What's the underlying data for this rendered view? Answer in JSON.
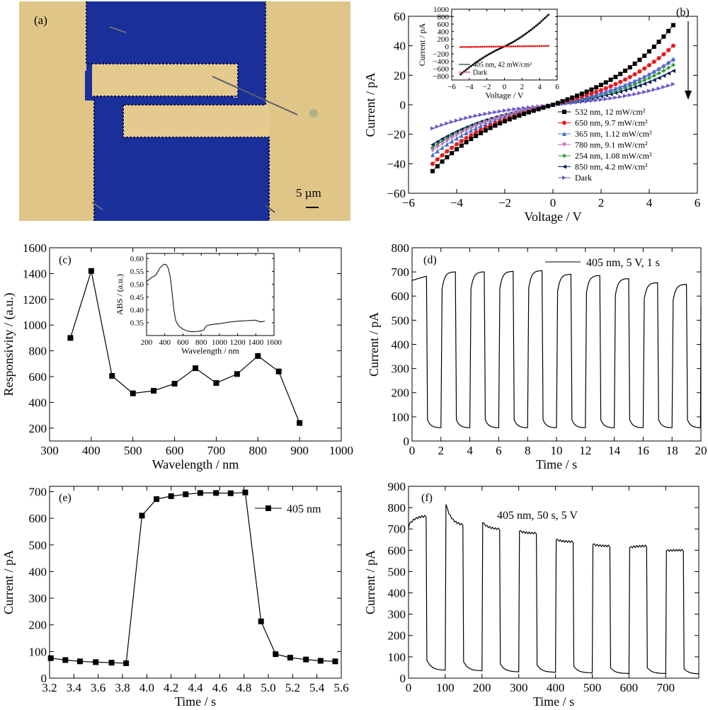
{
  "panel_a": {
    "label": "(a)",
    "scalebar_label": "5 µm",
    "colors": {
      "background": "#e4ca8e",
      "electrode": "#1a2f99",
      "electrode_edge": "#0a155a"
    }
  },
  "chart_data": [
    {
      "id": "b",
      "type": "line",
      "label": "(b)",
      "xlabel": "Voltage / V",
      "ylabel": "Current / pA",
      "xlim": [
        -6,
        6
      ],
      "ylim": [
        -60,
        60
      ],
      "xticks": [
        -6,
        -4,
        -2,
        0,
        2,
        4,
        6
      ],
      "yticks": [
        -60,
        -40,
        -20,
        0,
        20,
        40,
        60
      ],
      "x_range": [
        -5,
        5
      ],
      "series": [
        {
          "name": "532 nm, 12 mW/cm²",
          "color": "#000000",
          "marker": "square",
          "endpoints": [
            -45,
            54
          ]
        },
        {
          "name": "650 nm, 9.7 mW/cm²",
          "color": "#e31a1c",
          "marker": "circle",
          "endpoints": [
            -40,
            40
          ]
        },
        {
          "name": "365 nm, 1.12 mW/cm²",
          "color": "#3a6fd0",
          "marker": "triangle-up",
          "endpoints": [
            -34,
            31
          ]
        },
        {
          "name": "780 nm, 9.1 mW/cm²",
          "color": "#c86fc8",
          "marker": "triangle-down",
          "endpoints": [
            -31,
            30
          ]
        },
        {
          "name": "254 nm, 1.08 mW/cm²",
          "color": "#2f9e2f",
          "marker": "diamond",
          "endpoints": [
            -29,
            27
          ]
        },
        {
          "name": "850 nm, 4.2 mW/cm²",
          "color": "#0b1a5c",
          "marker": "triangle-left",
          "endpoints": [
            -27,
            23
          ]
        },
        {
          "name": "Dark",
          "color": "#6b56c8",
          "marker": "triangle-right",
          "endpoints": [
            -16,
            14
          ]
        }
      ],
      "inset": {
        "xlabel": "Voltage / V",
        "ylabel": "Current / pA",
        "xlim": [
          -6,
          6
        ],
        "ylim": [
          -900,
          1000
        ],
        "xticks": [
          -6,
          -4,
          -2,
          0,
          2,
          4,
          6
        ],
        "yticks": [
          -800,
          -600,
          -400,
          -200,
          0,
          200,
          400,
          600,
          800,
          1000
        ],
        "series": [
          {
            "name": "405 nm, 42 mW/cm²",
            "color": "#000000",
            "x": [
              -5,
              -4,
              -3,
              -2,
              -1,
              0,
              1,
              2,
              3,
              4,
              5
            ],
            "y": [
              -750,
              -560,
              -390,
              -240,
              -110,
              0,
              120,
              270,
              440,
              630,
              850
            ]
          },
          {
            "name": "Dark",
            "color": "#e31a1c",
            "x": [
              -5,
              5
            ],
            "y": [
              -16,
              14
            ]
          }
        ]
      }
    },
    {
      "id": "c",
      "type": "line",
      "label": "(c)",
      "xlabel": "Wavelength / nm",
      "ylabel": "Responsivity / (a.u.)",
      "xlim": [
        300,
        1000
      ],
      "ylim": [
        100,
        1600
      ],
      "xticks": [
        300,
        400,
        500,
        600,
        700,
        800,
        900,
        1000
      ],
      "yticks": [
        200,
        400,
        600,
        800,
        1000,
        1200,
        1400,
        1600
      ],
      "x": [
        350,
        400,
        450,
        500,
        550,
        600,
        650,
        700,
        750,
        800,
        850,
        900
      ],
      "values": [
        900,
        1420,
        605,
        470,
        490,
        545,
        665,
        550,
        620,
        760,
        640,
        240
      ],
      "inset": {
        "xlabel": "Wavelength / nm",
        "ylabel": "ABS / (a.u.)",
        "xlim": [
          200,
          1600
        ],
        "ylim": [
          0.3,
          0.62
        ],
        "xticks": [
          200,
          400,
          600,
          800,
          1000,
          1200,
          1400,
          1600
        ],
        "yticks": [
          0.35,
          0.4,
          0.45,
          0.5,
          0.55,
          0.6
        ],
        "x": [
          200,
          250,
          300,
          350,
          380,
          400,
          420,
          440,
          460,
          480,
          500,
          520,
          540,
          560,
          600,
          650,
          700,
          760,
          800,
          830,
          845,
          860,
          900,
          1000,
          1100,
          1200,
          1300,
          1400,
          1450,
          1500
        ],
        "y": [
          0.51,
          0.525,
          0.535,
          0.565,
          0.575,
          0.578,
          0.575,
          0.56,
          0.53,
          0.47,
          0.4,
          0.36,
          0.345,
          0.335,
          0.325,
          0.317,
          0.315,
          0.316,
          0.318,
          0.322,
          0.332,
          0.338,
          0.342,
          0.346,
          0.352,
          0.356,
          0.358,
          0.36,
          0.353,
          0.356
        ]
      }
    },
    {
      "id": "d",
      "type": "line",
      "label": "(d)",
      "xlabel": "Time / s",
      "ylabel": "Current / pA",
      "legend": "405 nm, 5 V, 1 s",
      "xlim": [
        0,
        20
      ],
      "ylim": [
        0,
        800
      ],
      "xticks": [
        0,
        2,
        4,
        6,
        8,
        10,
        12,
        14,
        16,
        18,
        20
      ],
      "yticks": [
        0,
        100,
        200,
        300,
        400,
        500,
        600,
        700,
        800
      ],
      "pulse_period": 2,
      "pulse_on_time": 1,
      "cycle_peaks": [
        682,
        700,
        700,
        702,
        705,
        690,
        685,
        672,
        655,
        648
      ],
      "cycle_lows": [
        55,
        55,
        55,
        55,
        55,
        55,
        55,
        55,
        55,
        55
      ]
    },
    {
      "id": "e",
      "type": "line",
      "label": "(e)",
      "xlabel": "Time / s",
      "ylabel": "Current / pA",
      "legend": "405 nm",
      "xlim": [
        3.2,
        5.6
      ],
      "ylim": [
        0,
        720
      ],
      "xticks": [
        3.2,
        3.4,
        3.6,
        3.8,
        4.0,
        4.2,
        4.4,
        4.6,
        4.8,
        5.0,
        5.2,
        5.4,
        5.6
      ],
      "yticks": [
        0,
        100,
        200,
        300,
        400,
        500,
        600,
        700
      ],
      "x": [
        3.21,
        3.33,
        3.45,
        3.58,
        3.71,
        3.83,
        3.96,
        4.08,
        4.2,
        4.32,
        4.44,
        4.57,
        4.69,
        4.81,
        4.94,
        5.06,
        5.18,
        5.31,
        5.43,
        5.55
      ],
      "values": [
        75,
        68,
        63,
        60,
        58,
        56,
        610,
        672,
        683,
        690,
        695,
        695,
        694,
        697,
        213,
        90,
        77,
        70,
        65,
        63
      ]
    },
    {
      "id": "f",
      "type": "line",
      "label": "(f)",
      "xlabel": "Time / s",
      "ylabel": "Current / pA",
      "legend": "405 nm, 50 s, 5 V",
      "xlim": [
        0,
        790
      ],
      "ylim": [
        0,
        900
      ],
      "xticks": [
        0,
        100,
        200,
        300,
        400,
        500,
        600,
        700
      ],
      "yticks": [
        0,
        100,
        200,
        300,
        400,
        500,
        600,
        700,
        800,
        900
      ],
      "pulse_period": 100,
      "pulse_on_time": 50,
      "cycle_start": [
        720,
        815,
        730,
        690,
        650,
        628,
        612,
        598
      ],
      "cycle_end": [
        760,
        720,
        700,
        680,
        640,
        620,
        620,
        600
      ],
      "cycle_lows": [
        38,
        35,
        30,
        28,
        25,
        22,
        22,
        20
      ]
    }
  ]
}
